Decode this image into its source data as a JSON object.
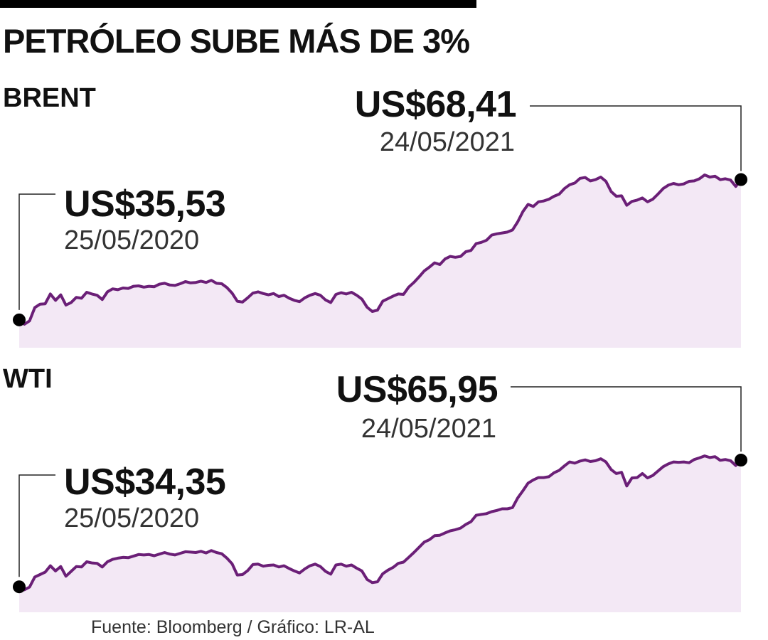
{
  "header": {
    "title": "PETRÓLEO SUBE MÁS DE 3%"
  },
  "source": "Fuente: Bloomberg / Gráfico: LR-AL",
  "colors": {
    "line": "#6b1f77",
    "fill": "#f3e8f5",
    "text": "#111111"
  },
  "chart_data": [
    {
      "type": "area",
      "title": "BRENT",
      "start": {
        "value_label": "US$35,53",
        "date": "25/05/2020",
        "value": 35.53
      },
      "end": {
        "value_label": "US$68,41",
        "date": "24/05/2021",
        "value": 68.41
      },
      "ylim": [
        29,
        77
      ],
      "values": [
        35.5,
        34.5,
        35.3,
        38.4,
        39.2,
        39.3,
        41.6,
        40.1,
        41.4,
        39.0,
        39.6,
        40.8,
        40.6,
        42.0,
        41.6,
        41.3,
        40.3,
        42.1,
        42.8,
        42.6,
        43.0,
        42.9,
        43.4,
        43.5,
        43.2,
        43.4,
        43.3,
        43.9,
        44.1,
        43.7,
        43.6,
        44.0,
        44.5,
        44.2,
        44.3,
        44.6,
        44.3,
        44.8,
        44.1,
        44.0,
        43.1,
        41.8,
        39.9,
        39.7,
        40.7,
        41.8,
        42.1,
        41.7,
        41.4,
        41.7,
        41.0,
        41.3,
        40.6,
        40.1,
        39.8,
        40.7,
        41.3,
        41.7,
        41.3,
        40.2,
        39.6,
        41.5,
        41.9,
        41.6,
        42.0,
        41.3,
        40.4,
        38.5,
        37.5,
        37.8,
        39.9,
        40.5,
        41.1,
        41.6,
        41.5,
        43.2,
        44.3,
        45.6,
        47.0,
        47.9,
        48.9,
        48.5,
        49.8,
        50.4,
        50.2,
        50.4,
        51.5,
        51.8,
        53.4,
        53.7,
        54.2,
        55.4,
        55.7,
        55.9,
        56.1,
        56.6,
        58.5,
        60.9,
        62.6,
        62.1,
        63.2,
        63.4,
        63.8,
        64.5,
        65.0,
        66.3,
        67.2,
        67.6,
        68.7,
        68.9,
        68.1,
        68.4,
        69.0,
        68.0,
        65.6,
        64.5,
        64.6,
        62.4,
        63.3,
        63.6,
        64.1,
        63.2,
        63.8,
        65.0,
        66.3,
        67.1,
        67.5,
        67.2,
        67.4,
        68.0,
        68.1,
        68.6,
        69.5,
        69.0,
        69.2,
        68.4,
        68.6,
        68.3,
        66.8,
        68.41
      ]
    },
    {
      "type": "area",
      "title": "WTI",
      "start": {
        "value_label": "US$34,35",
        "date": "25/05/2020",
        "value": 34.35
      },
      "end": {
        "value_label": "US$65,95",
        "date": "24/05/2021",
        "value": 65.95
      },
      "ylim": [
        28,
        75
      ],
      "values": [
        34.4,
        33.6,
        34.3,
        36.8,
        37.4,
        38.0,
        39.6,
        38.3,
        39.4,
        37.0,
        38.2,
        39.4,
        39.3,
        40.6,
        40.3,
        40.2,
        39.3,
        40.6,
        41.2,
        41.5,
        41.7,
        41.6,
        42.0,
        42.4,
        42.3,
        42.4,
        42.1,
        42.5,
        42.9,
        42.5,
        42.3,
        42.7,
        43.1,
        43.0,
        42.9,
        43.2,
        42.8,
        43.4,
        42.9,
        42.6,
        41.5,
        40.1,
        37.3,
        37.4,
        38.4,
        39.9,
        40.0,
        39.5,
        39.7,
        39.8,
        39.3,
        39.6,
        38.9,
        38.3,
        37.8,
        38.8,
        39.6,
        40.0,
        39.4,
        38.2,
        37.5,
        39.8,
        40.0,
        39.5,
        39.8,
        39.0,
        38.3,
        36.2,
        35.4,
        35.6,
        37.6,
        38.5,
        39.2,
        40.2,
        40.5,
        41.7,
        42.9,
        44.2,
        45.5,
        46.1,
        47.1,
        47.2,
        47.8,
        48.3,
        48.6,
        49.0,
        49.9,
        50.6,
        52.2,
        52.4,
        52.6,
        53.1,
        53.4,
        53.8,
        53.8,
        54.1,
        56.5,
        58.3,
        60.2,
        61.0,
        61.6,
        61.6,
        61.8,
        62.8,
        63.4,
        64.5,
        65.5,
        65.2,
        65.7,
        66.0,
        65.6,
        65.8,
        66.3,
        65.5,
        63.6,
        62.6,
        62.9,
        59.5,
        61.5,
        61.6,
        62.6,
        61.5,
        62.1,
        63.2,
        64.3,
        65.0,
        65.5,
        65.4,
        65.5,
        65.3,
        66.1,
        66.5,
        67.0,
        66.6,
        66.8,
        65.9,
        66.1,
        65.8,
        64.6,
        65.95
      ]
    }
  ]
}
